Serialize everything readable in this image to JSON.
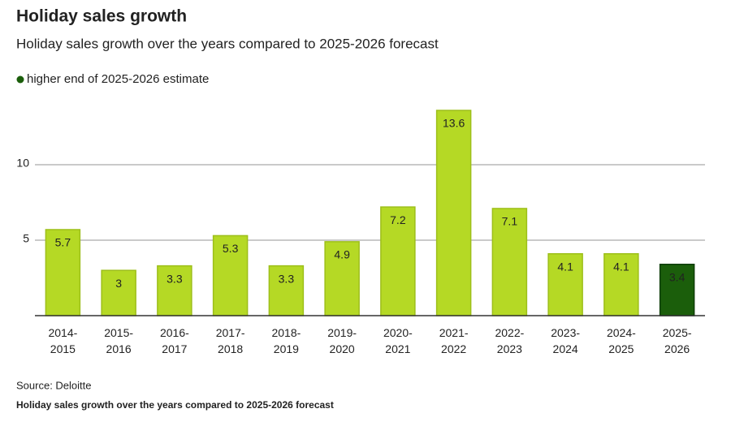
{
  "chart_data": {
    "type": "bar",
    "title": "Holiday sales growth",
    "subtitle": "Holiday sales growth over the years compared to 2025-2026 forecast",
    "legend": {
      "label": "higher end of 2025-2026 estimate",
      "color": "#1b5e0b"
    },
    "categories": [
      "2014-\n2015",
      "2015-\n2016",
      "2016-\n2017",
      "2017-\n2018",
      "2018-\n2019",
      "2019-\n2020",
      "2020-\n2021",
      "2021-\n2022",
      "2022-\n2023",
      "2023-\n2024",
      "2024-\n2025",
      "2025-\n2026"
    ],
    "values": [
      5.7,
      3,
      3.3,
      5.3,
      3.3,
      4.9,
      7.2,
      13.6,
      7.1,
      4.1,
      4.1,
      3.4
    ],
    "colors": [
      "#b5d925",
      "#b5d925",
      "#b5d925",
      "#b5d925",
      "#b5d925",
      "#b5d925",
      "#b5d925",
      "#b5d925",
      "#b5d925",
      "#b5d925",
      "#b5d925",
      "#1b5e0b"
    ],
    "ylim": [
      0,
      14
    ],
    "yticks": [
      5,
      10
    ],
    "grid": true,
    "source": "Source: Deloitte",
    "footnote": "Holiday sales growth over the years compared to 2025-2026 forecast"
  }
}
